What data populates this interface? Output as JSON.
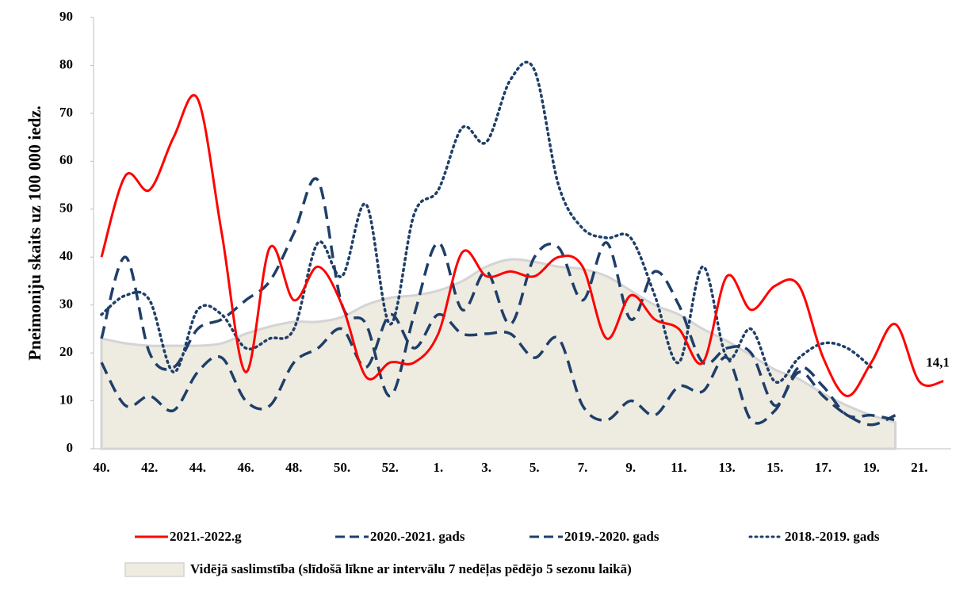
{
  "chart_data": {
    "type": "line",
    "y_label": "Pneimoniju skaits uz 100 000 iedz.",
    "categories": [
      "40.",
      null,
      "42.",
      null,
      "44.",
      null,
      "46.",
      null,
      "48.",
      null,
      "50.",
      null,
      "52.",
      null,
      "1.",
      null,
      "3.",
      null,
      "5.",
      null,
      "7.",
      null,
      "9.",
      null,
      "11.",
      null,
      "13.",
      null,
      "15.",
      null,
      "17.",
      null,
      "19.",
      null,
      "21.",
      null
    ],
    "ylim": [
      0,
      90
    ],
    "yticks": [
      0,
      10,
      20,
      30,
      40,
      50,
      60,
      70,
      80,
      90
    ],
    "series": [
      {
        "name": "2021.-2022.g",
        "color": "#ff0000",
        "dash": "solid",
        "values": [
          40,
          57,
          54,
          65,
          73,
          45,
          16,
          42,
          31,
          38,
          30,
          15,
          18,
          18,
          24,
          41,
          36,
          37,
          36,
          40,
          38,
          23,
          32,
          27,
          25,
          18,
          36,
          29,
          34,
          34,
          19,
          11,
          18,
          26,
          14,
          14.1
        ],
        "value_labels": [
          null,
          null,
          null,
          null,
          null,
          null,
          null,
          null,
          null,
          null,
          null,
          null,
          null,
          null,
          null,
          null,
          null,
          null,
          null,
          null,
          null,
          null,
          null,
          null,
          null,
          null,
          null,
          null,
          null,
          null,
          null,
          null,
          null,
          null,
          null,
          "14,1"
        ]
      },
      {
        "name": "2020.-2021. gads",
        "color": "#1f3f68",
        "dash": "dashed",
        "values": [
          23,
          40,
          20,
          17,
          25,
          27,
          31,
          35,
          45,
          56,
          30,
          26,
          11,
          28,
          43,
          29,
          37,
          26,
          40,
          42,
          31,
          43,
          27,
          37,
          30,
          18,
          21,
          20,
          9,
          17,
          13,
          7,
          7,
          6,
          null,
          null
        ]
      },
      {
        "name": "2019.-2020. gads",
        "color": "#1f3f68",
        "dash": "dashed",
        "values": [
          18,
          9,
          11,
          8,
          16,
          19,
          10,
          9,
          18,
          21,
          25,
          17,
          28,
          21,
          28,
          24,
          24,
          24,
          19,
          23,
          9,
          6,
          10,
          7,
          13,
          12,
          19,
          6,
          8,
          16,
          11,
          7,
          5,
          7,
          null,
          null
        ]
      },
      {
        "name": "2018.-2019. gads",
        "color": "#1f3f68",
        "dash": "dotted",
        "values": [
          28,
          32,
          31,
          16,
          29,
          28,
          21,
          23,
          25,
          43,
          36,
          51,
          26,
          49,
          54,
          67,
          64,
          77,
          79,
          55,
          46,
          44,
          44,
          32,
          18,
          38,
          19,
          25,
          14,
          19,
          22,
          21,
          17,
          null,
          null,
          null
        ]
      },
      {
        "name": "Vidējā saslimstība (slīdošā līkne ar intervālu 7 nedēļas pēdējo 5 sezonu laikā)",
        "color": "#eeebe1",
        "dash": "area",
        "values": [
          23,
          22,
          21.5,
          21.5,
          21.5,
          22,
          24,
          25.5,
          26.5,
          26.5,
          27.5,
          30,
          31.5,
          32,
          33,
          35,
          38,
          39.5,
          39,
          38,
          37.5,
          36,
          33,
          30,
          28,
          25,
          22.5,
          19.5,
          16.5,
          14.5,
          11.5,
          9,
          7,
          5.5,
          null,
          null
        ]
      }
    ]
  }
}
